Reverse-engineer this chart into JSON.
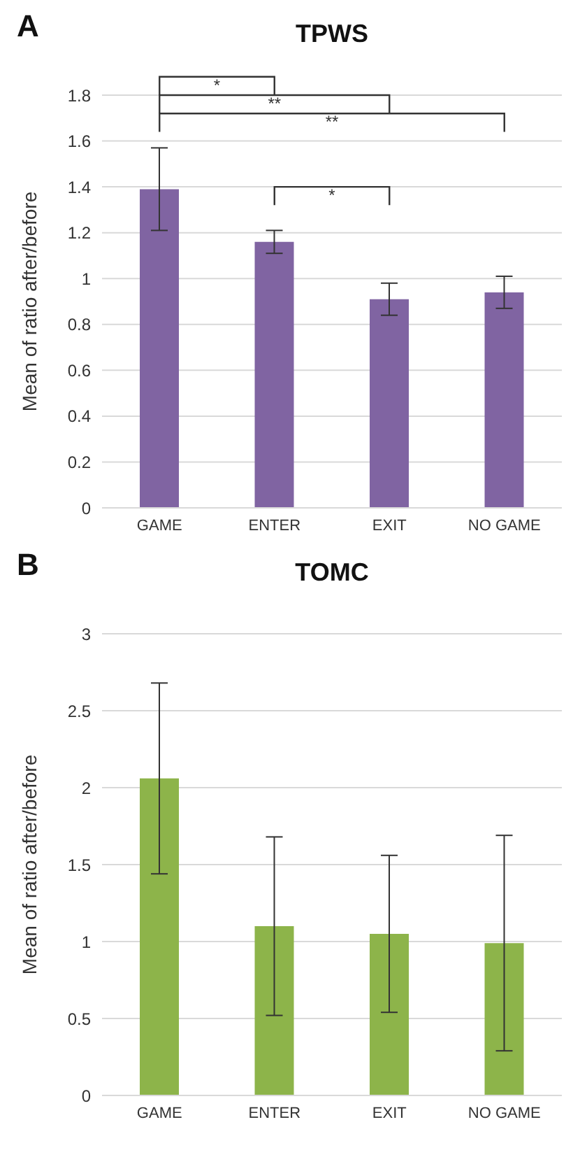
{
  "chart_data": [
    {
      "type": "bar",
      "title": "TPWS",
      "ylabel": "Mean of ratio after/before",
      "categories": [
        "GAME",
        "ENTER",
        "EXIT",
        "NO GAME"
      ],
      "values": [
        1.39,
        1.16,
        0.91,
        0.94
      ],
      "errors": [
        0.18,
        0.05,
        0.07,
        0.07
      ],
      "color": "#8064a2",
      "ylim": [
        0,
        1.8
      ],
      "yticks": [
        0,
        0.2,
        0.4,
        0.6,
        0.8,
        1,
        1.2,
        1.4,
        1.6,
        1.8
      ],
      "grid": "y",
      "annotations": [
        "A",
        "*",
        "**",
        "**",
        "*"
      ]
    },
    {
      "type": "bar",
      "title": "TOMC",
      "ylabel": "Mean of ratio after/before",
      "categories": [
        "GAME",
        "ENTER",
        "EXIT",
        "NO GAME"
      ],
      "values": [
        2.06,
        1.1,
        1.05,
        0.99
      ],
      "errors": [
        0.62,
        0.58,
        0.51,
        0.7
      ],
      "color": "#8db44a",
      "ylim": [
        0,
        3
      ],
      "yticks": [
        0,
        0.5,
        1,
        1.5,
        2,
        2.5,
        3
      ],
      "grid": "y",
      "annotations": [
        "B"
      ]
    }
  ]
}
